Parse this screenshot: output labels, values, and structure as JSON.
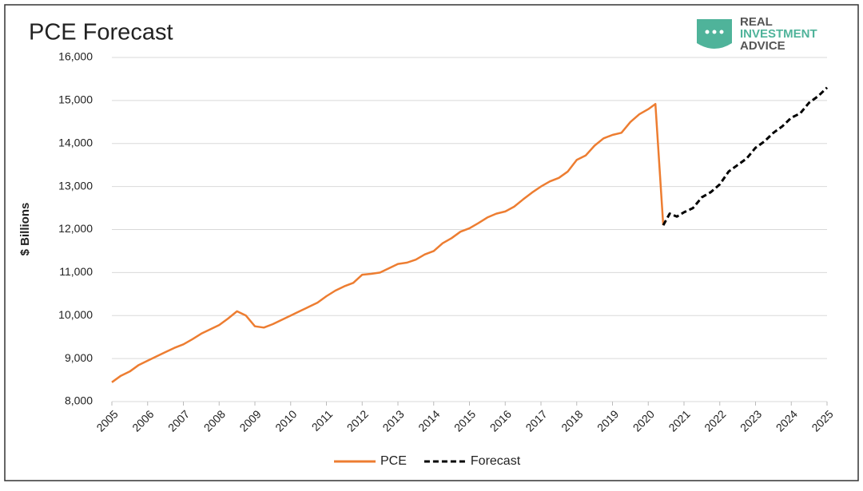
{
  "chart_data": {
    "type": "line",
    "title": "PCE Forecast",
    "logo": [
      "REAL",
      "INVESTMENT",
      "ADVICE"
    ],
    "ylabel": "$ Billions",
    "xlim": [
      2005,
      2025
    ],
    "xticks": [
      2005,
      2006,
      2007,
      2008,
      2009,
      2010,
      2011,
      2012,
      2013,
      2014,
      2015,
      2016,
      2017,
      2018,
      2019,
      2020,
      2021,
      2022,
      2023,
      2024,
      2025
    ],
    "ylim": [
      8000,
      16000
    ],
    "yticks": [
      {
        "value": 8000,
        "label": "8,000"
      },
      {
        "value": 9000,
        "label": "9,000"
      },
      {
        "value": 10000,
        "label": "10,000"
      },
      {
        "value": 11000,
        "label": "11,000"
      },
      {
        "value": 12000,
        "label": "12,000"
      },
      {
        "value": 13000,
        "label": "13,000"
      },
      {
        "value": 14000,
        "label": "14,000"
      },
      {
        "value": 15000,
        "label": "15,000"
      },
      {
        "value": 16000,
        "label": "16,000"
      }
    ],
    "grid": true,
    "legend": "bottom",
    "series": [
      {
        "name": "PCE",
        "color": "#ed7d31",
        "dashed": false,
        "x": [
          2005.0,
          2005.25,
          2005.5,
          2005.75,
          2006.0,
          2006.25,
          2006.5,
          2006.75,
          2007.0,
          2007.25,
          2007.5,
          2007.75,
          2008.0,
          2008.25,
          2008.5,
          2008.75,
          2009.0,
          2009.25,
          2009.5,
          2009.75,
          2010.0,
          2010.25,
          2010.5,
          2010.75,
          2011.0,
          2011.25,
          2011.5,
          2011.75,
          2012.0,
          2012.25,
          2012.5,
          2012.75,
          2013.0,
          2013.25,
          2013.5,
          2013.75,
          2014.0,
          2014.25,
          2014.5,
          2014.75,
          2015.0,
          2015.25,
          2015.5,
          2015.75,
          2016.0,
          2016.25,
          2016.5,
          2016.75,
          2017.0,
          2017.25,
          2017.5,
          2017.75,
          2018.0,
          2018.25,
          2018.5,
          2018.75,
          2019.0,
          2019.25,
          2019.5,
          2019.75,
          2020.0,
          2020.2,
          2020.42
        ],
        "values": [
          8450,
          8600,
          8700,
          8850,
          8950,
          9050,
          9150,
          9250,
          9330,
          9450,
          9580,
          9680,
          9780,
          9930,
          10100,
          10000,
          9750,
          9720,
          9800,
          9900,
          10000,
          10100,
          10200,
          10300,
          10450,
          10580,
          10680,
          10760,
          10950,
          10970,
          11000,
          11100,
          11200,
          11230,
          11300,
          11420,
          11500,
          11680,
          11800,
          11950,
          12030,
          12150,
          12280,
          12370,
          12420,
          12530,
          12700,
          12860,
          13000,
          13120,
          13200,
          13350,
          13620,
          13720,
          13950,
          14120,
          14200,
          14250,
          14500,
          14680,
          14800,
          14920,
          12100
        ]
      },
      {
        "name": "Forecast",
        "color": "#000000",
        "dashed": true,
        "x": [
          2020.42,
          2020.6,
          2020.8,
          2021.0,
          2021.25,
          2021.5,
          2021.75,
          2022.0,
          2022.25,
          2022.5,
          2022.75,
          2023.0,
          2023.25,
          2023.5,
          2023.75,
          2024.0,
          2024.25,
          2024.5,
          2024.75,
          2025.0
        ],
        "values": [
          12100,
          12370,
          12300,
          12400,
          12500,
          12750,
          12870,
          13050,
          13350,
          13500,
          13650,
          13900,
          14050,
          14250,
          14400,
          14600,
          14700,
          14950,
          15100,
          15300
        ]
      }
    ]
  }
}
